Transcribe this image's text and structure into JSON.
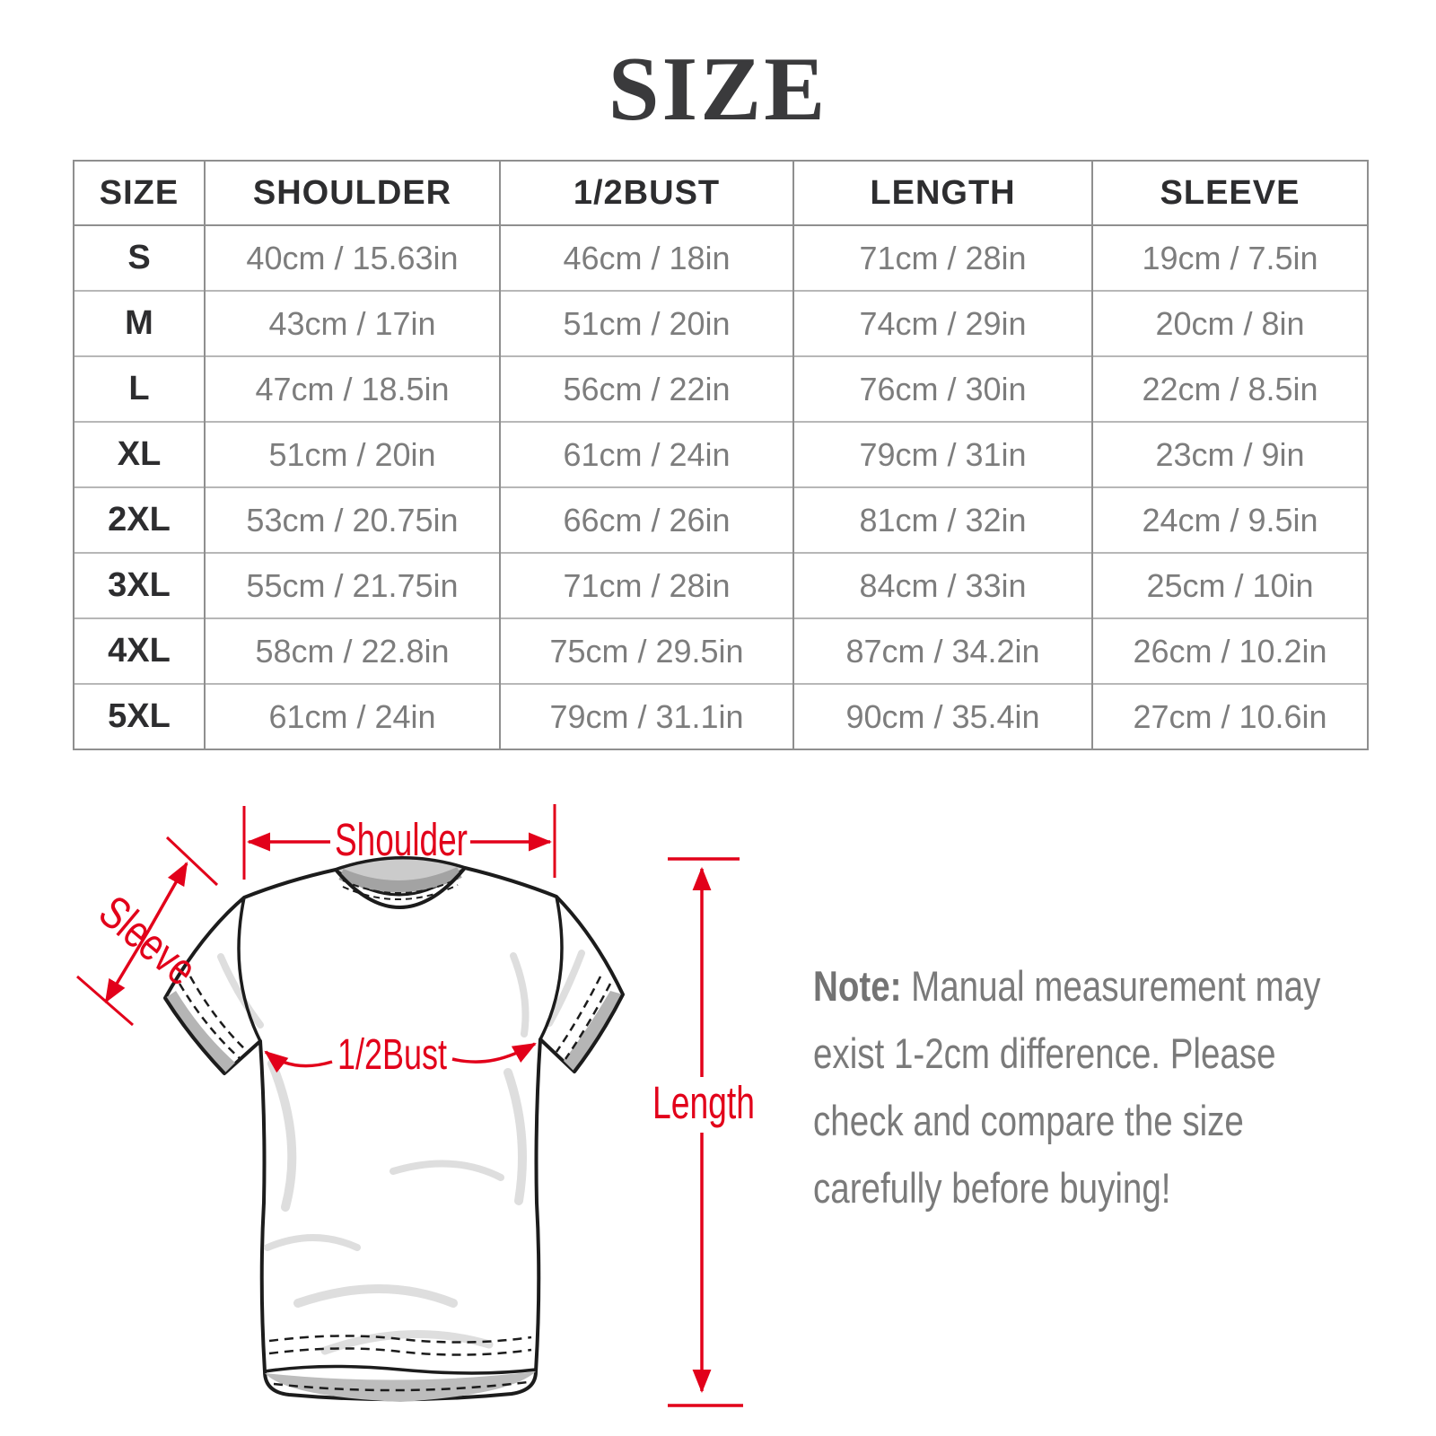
{
  "title": "SIZE",
  "colors": {
    "accent_red": "#e2001a",
    "header_text": "#2d2d2f",
    "value_text": "#7d7d7d",
    "note_text": "#7a7a7a"
  },
  "table": {
    "headers": [
      "SIZE",
      "SHOULDER",
      "1/2BUST",
      "LENGTH",
      "SLEEVE"
    ],
    "rows": [
      {
        "size": "S",
        "shoulder": "40cm / 15.63in",
        "bust": "46cm / 18in",
        "length": "71cm / 28in",
        "sleeve": "19cm / 7.5in"
      },
      {
        "size": "M",
        "shoulder": "43cm / 17in",
        "bust": "51cm / 20in",
        "length": "74cm / 29in",
        "sleeve": "20cm / 8in"
      },
      {
        "size": "L",
        "shoulder": "47cm / 18.5in",
        "bust": "56cm / 22in",
        "length": "76cm / 30in",
        "sleeve": "22cm / 8.5in"
      },
      {
        "size": "XL",
        "shoulder": "51cm / 20in",
        "bust": "61cm / 24in",
        "length": "79cm / 31in",
        "sleeve": "23cm / 9in"
      },
      {
        "size": "2XL",
        "shoulder": "53cm / 20.75in",
        "bust": "66cm / 26in",
        "length": "81cm / 32in",
        "sleeve": "24cm / 9.5in"
      },
      {
        "size": "3XL",
        "shoulder": "55cm / 21.75in",
        "bust": "71cm / 28in",
        "length": "84cm / 33in",
        "sleeve": "25cm / 10in"
      },
      {
        "size": "4XL",
        "shoulder": "58cm / 22.8in",
        "bust": "75cm / 29.5in",
        "length": "87cm / 34.2in",
        "sleeve": "26cm / 10.2in"
      },
      {
        "size": "5XL",
        "shoulder": "61cm / 24in",
        "bust": "79cm / 31.1in",
        "length": "90cm / 35.4in",
        "sleeve": "27cm / 10.6in"
      }
    ]
  },
  "diagram": {
    "shoulder_label": "Shoulder",
    "sleeve_label": "Sleeve",
    "bust_label": "1/2Bust",
    "length_label": "Length"
  },
  "note": {
    "label": "Note:",
    "text": "Manual measurement may exist 1-2cm difference. Please check and compare the size carefully before buying!"
  }
}
